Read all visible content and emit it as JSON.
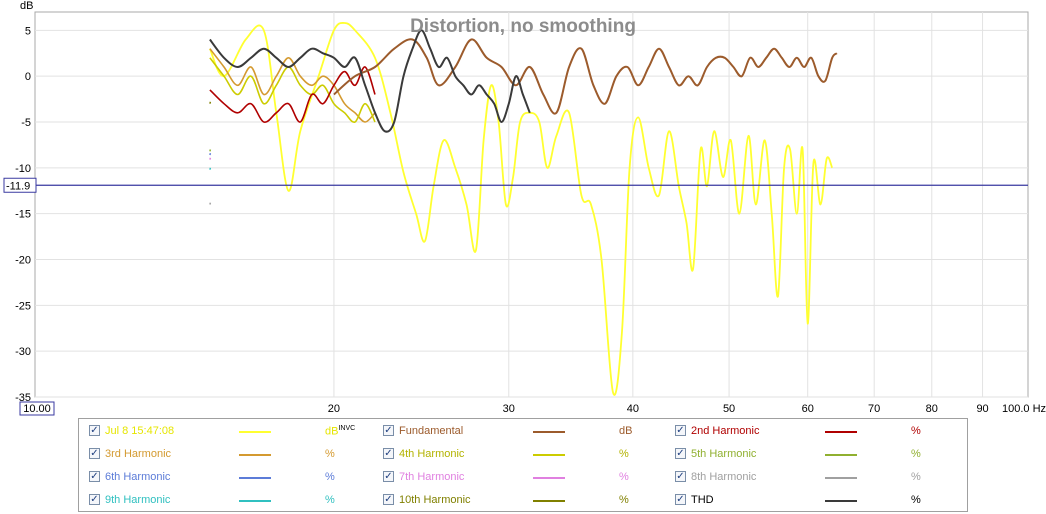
{
  "chart_data": {
    "type": "line",
    "title": "Distortion, no smoothing",
    "ylabel": "dB",
    "x_unit": "Hz",
    "x_scale": "log",
    "xlim": [
      10,
      100
    ],
    "ylim": [
      -35,
      7
    ],
    "x_ticks": [
      {
        "v": 10,
        "label": "10.00"
      },
      {
        "v": 20,
        "label": "20"
      },
      {
        "v": 30,
        "label": "30"
      },
      {
        "v": 40,
        "label": "40"
      },
      {
        "v": 50,
        "label": "50"
      },
      {
        "v": 60,
        "label": "60"
      },
      {
        "v": 70,
        "label": "70"
      },
      {
        "v": 80,
        "label": "80"
      },
      {
        "v": 90,
        "label": "90"
      },
      {
        "v": 100,
        "label": "100.0 Hz"
      }
    ],
    "y_ticks": [
      5,
      0,
      -5,
      -10,
      -15,
      -20,
      -25,
      -30,
      -35
    ],
    "cursor": {
      "value": -11.9,
      "label": "-11.9"
    },
    "grid": true,
    "series": [
      {
        "name": "Jul 8 15:47:08",
        "color": "#ffff30",
        "unit": "dB",
        "unit_sup": "INVC",
        "width": 1.8,
        "points": [
          [
            15,
            3
          ],
          [
            15.5,
            0
          ],
          [
            16.3,
            4
          ],
          [
            17,
            5
          ],
          [
            17.5,
            -4
          ],
          [
            18,
            -12.5
          ],
          [
            18.5,
            -6
          ],
          [
            19.3,
            0
          ],
          [
            20,
            5
          ],
          [
            20.5,
            5.8
          ],
          [
            21,
            5
          ],
          [
            22,
            2
          ],
          [
            22.8,
            -4
          ],
          [
            23.5,
            -10.5
          ],
          [
            24.2,
            -15
          ],
          [
            24.7,
            -18
          ],
          [
            25.2,
            -12
          ],
          [
            25.8,
            -7
          ],
          [
            26.5,
            -10
          ],
          [
            27.2,
            -14
          ],
          [
            27.8,
            -19
          ],
          [
            28.3,
            -7
          ],
          [
            28.8,
            -1
          ],
          [
            29.3,
            -5
          ],
          [
            29.8,
            -14
          ],
          [
            30.3,
            -11
          ],
          [
            30.8,
            -5
          ],
          [
            31.5,
            -4
          ],
          [
            32.2,
            -5
          ],
          [
            32.8,
            -10
          ],
          [
            33.5,
            -6.5
          ],
          [
            34.5,
            -4
          ],
          [
            35.5,
            -13
          ],
          [
            36.3,
            -14
          ],
          [
            37.2,
            -20
          ],
          [
            38.2,
            -34.5
          ],
          [
            39,
            -28
          ],
          [
            39.7,
            -10
          ],
          [
            40.5,
            -4.5
          ],
          [
            41.5,
            -10
          ],
          [
            42.5,
            -13
          ],
          [
            43.5,
            -6
          ],
          [
            44.5,
            -12
          ],
          [
            45.3,
            -16
          ],
          [
            46,
            -21
          ],
          [
            46.8,
            -8
          ],
          [
            47.5,
            -12
          ],
          [
            48.3,
            -6
          ],
          [
            49.3,
            -11
          ],
          [
            50.2,
            -7
          ],
          [
            51.2,
            -15
          ],
          [
            52.3,
            -6.5
          ],
          [
            53.2,
            -14
          ],
          [
            54.3,
            -7
          ],
          [
            55.2,
            -15
          ],
          [
            56,
            -24
          ],
          [
            56.8,
            -10
          ],
          [
            57.6,
            -8
          ],
          [
            58.5,
            -15
          ],
          [
            59.3,
            -8
          ],
          [
            60,
            -27
          ],
          [
            60.8,
            -9.5
          ],
          [
            61.8,
            -14
          ],
          [
            62.7,
            -9
          ],
          [
            63.5,
            -10
          ]
        ]
      },
      {
        "name": "Fundamental",
        "color": "#9c5b2c",
        "unit": "dB",
        "width": 2,
        "points": [
          [
            20,
            -2
          ],
          [
            21,
            0
          ],
          [
            22,
            1
          ],
          [
            23,
            3
          ],
          [
            24,
            4
          ],
          [
            24.8,
            2
          ],
          [
            25.5,
            -1
          ],
          [
            26.5,
            1
          ],
          [
            27.5,
            4
          ],
          [
            28.5,
            2
          ],
          [
            29.5,
            1
          ],
          [
            30.5,
            -1
          ],
          [
            31.5,
            1
          ],
          [
            32.5,
            -2
          ],
          [
            33.5,
            -4
          ],
          [
            34.5,
            1
          ],
          [
            35.5,
            3
          ],
          [
            36.5,
            -1
          ],
          [
            37.5,
            -3
          ],
          [
            38.5,
            0
          ],
          [
            39.5,
            1
          ],
          [
            40.5,
            -1
          ],
          [
            41.5,
            1
          ],
          [
            42.5,
            3
          ],
          [
            43.5,
            1
          ],
          [
            44.5,
            -1
          ],
          [
            45.5,
            0
          ],
          [
            46.5,
            -1
          ],
          [
            47.5,
            1
          ],
          [
            48.5,
            2
          ],
          [
            49.5,
            2
          ],
          [
            50.5,
            1
          ],
          [
            51.5,
            0
          ],
          [
            52.5,
            2
          ],
          [
            53.5,
            1
          ],
          [
            54.5,
            2
          ],
          [
            55.5,
            3
          ],
          [
            56.5,
            2
          ],
          [
            57.5,
            1
          ],
          [
            58.5,
            2
          ],
          [
            59.5,
            1
          ],
          [
            60.5,
            2
          ],
          [
            61.5,
            0
          ],
          [
            62.5,
            -0.5
          ],
          [
            63.5,
            2
          ],
          [
            64.2,
            2.5
          ]
        ]
      },
      {
        "name": "2nd Harmonic",
        "color": "#b00000",
        "unit": "%",
        "width": 1.6,
        "points": [
          [
            15,
            -1.5
          ],
          [
            15.5,
            -3
          ],
          [
            16,
            -4
          ],
          [
            16.5,
            -3
          ],
          [
            17,
            -5
          ],
          [
            17.5,
            -4
          ],
          [
            18,
            -3
          ],
          [
            18.5,
            -5
          ],
          [
            19,
            -2
          ],
          [
            19.5,
            -3
          ],
          [
            20,
            -1
          ],
          [
            20.5,
            0.5
          ],
          [
            21,
            -1
          ],
          [
            21.5,
            1
          ],
          [
            22,
            -2
          ]
        ]
      },
      {
        "name": "3rd Harmonic",
        "color": "#d49a30",
        "unit": "%",
        "width": 1.6,
        "points": [
          [
            15,
            3
          ],
          [
            15.5,
            1
          ],
          [
            16,
            -1
          ],
          [
            16.5,
            1
          ],
          [
            17,
            -2
          ],
          [
            17.5,
            0
          ],
          [
            18,
            2
          ],
          [
            18.5,
            0
          ],
          [
            19,
            -1
          ],
          [
            19.5,
            0
          ],
          [
            20,
            -1
          ],
          [
            20.5,
            -3
          ],
          [
            21,
            -4
          ],
          [
            21.5,
            -5
          ],
          [
            22,
            -4
          ]
        ]
      },
      {
        "name": "4th Harmonic",
        "color": "#cccc00",
        "unit": "%",
        "width": 1.6,
        "points": [
          [
            15,
            2
          ],
          [
            15.5,
            0
          ],
          [
            16,
            -2
          ],
          [
            16.5,
            0
          ],
          [
            17,
            -3
          ],
          [
            17.5,
            -1
          ],
          [
            18,
            1
          ],
          [
            18.5,
            -1
          ],
          [
            19,
            -2
          ],
          [
            19.5,
            -1
          ],
          [
            20,
            -3
          ],
          [
            20.5,
            -4
          ],
          [
            21,
            -5
          ],
          [
            21.5,
            -3
          ],
          [
            22,
            -5
          ]
        ]
      },
      {
        "name": "5th Harmonic",
        "color": "#90b030",
        "unit": "%",
        "width": 1.5,
        "points": [
          [
            15,
            -8.2
          ],
          [
            15.02,
            -8.0
          ]
        ]
      },
      {
        "name": "6th Harmonic",
        "color": "#5c7cd8",
        "unit": "%",
        "width": 1.5,
        "points": [
          [
            15,
            -8.6
          ],
          [
            15.02,
            -8.4
          ]
        ]
      },
      {
        "name": "7th Harmonic",
        "color": "#e080e0",
        "unit": "%",
        "width": 1.5,
        "points": [
          [
            15,
            -9.1
          ],
          [
            15.02,
            -8.9
          ]
        ]
      },
      {
        "name": "8th Harmonic",
        "color": "#a0a0a0",
        "unit": "%",
        "width": 1.5,
        "points": [
          [
            15,
            -14
          ],
          [
            15.02,
            -13.8
          ]
        ]
      },
      {
        "name": "9th Harmonic",
        "color": "#30c0c0",
        "unit": "%",
        "width": 1.5,
        "points": [
          [
            15,
            -10.2
          ],
          [
            15.02,
            -10
          ]
        ]
      },
      {
        "name": "10th Harmonic",
        "color": "#808000",
        "unit": "%",
        "width": 1.5,
        "points": [
          [
            15,
            -3
          ],
          [
            15.02,
            -2.8
          ]
        ]
      },
      {
        "name": "THD",
        "color": "#3a3a3a",
        "unit": "%",
        "width": 2,
        "points": [
          [
            15,
            4
          ],
          [
            15.5,
            2
          ],
          [
            16,
            1
          ],
          [
            16.5,
            2
          ],
          [
            17,
            3
          ],
          [
            17.5,
            2
          ],
          [
            18,
            1
          ],
          [
            18.5,
            2
          ],
          [
            19,
            3
          ],
          [
            19.5,
            2.5
          ],
          [
            20,
            2
          ],
          [
            20.5,
            1
          ],
          [
            21,
            2
          ],
          [
            21.5,
            -1
          ],
          [
            22,
            -4
          ],
          [
            22.5,
            -6
          ],
          [
            23,
            -5
          ],
          [
            23.5,
            0
          ],
          [
            24,
            3
          ],
          [
            24.5,
            5
          ],
          [
            25,
            3
          ],
          [
            25.5,
            1
          ],
          [
            26,
            2
          ],
          [
            26.5,
            0
          ],
          [
            27,
            -1
          ],
          [
            27.5,
            -2
          ],
          [
            28,
            -1
          ],
          [
            28.5,
            -2
          ],
          [
            29,
            -3
          ],
          [
            29.5,
            -5
          ],
          [
            30,
            -3
          ],
          [
            30.5,
            0
          ],
          [
            31,
            -2
          ],
          [
            31.5,
            -4
          ]
        ]
      }
    ]
  }
}
